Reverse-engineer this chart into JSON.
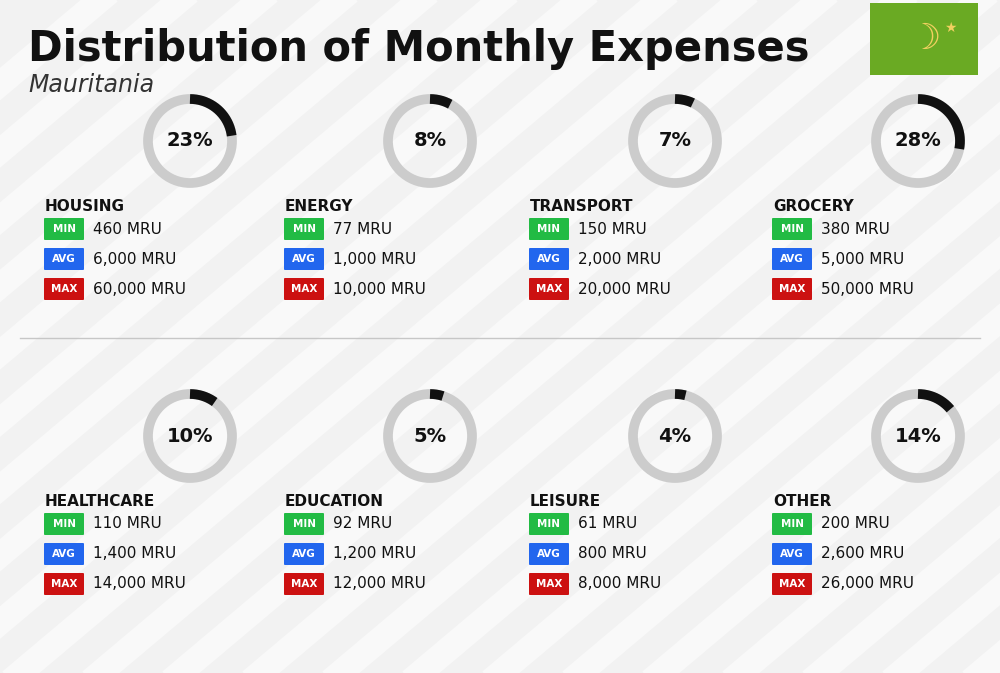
{
  "title": "Distribution of Monthly Expenses",
  "subtitle": "Mauritania",
  "bg_color": "#f2f2f2",
  "categories": [
    {
      "name": "HOUSING",
      "pct": 23,
      "min": "460 MRU",
      "avg": "6,000 MRU",
      "max": "60,000 MRU"
    },
    {
      "name": "ENERGY",
      "pct": 8,
      "min": "77 MRU",
      "avg": "1,000 MRU",
      "max": "10,000 MRU"
    },
    {
      "name": "TRANSPORT",
      "pct": 7,
      "min": "150 MRU",
      "avg": "2,000 MRU",
      "max": "20,000 MRU"
    },
    {
      "name": "GROCERY",
      "pct": 28,
      "min": "380 MRU",
      "avg": "5,000 MRU",
      "max": "50,000 MRU"
    },
    {
      "name": "HEALTHCARE",
      "pct": 10,
      "min": "110 MRU",
      "avg": "1,400 MRU",
      "max": "14,000 MRU"
    },
    {
      "name": "EDUCATION",
      "pct": 5,
      "min": "92 MRU",
      "avg": "1,200 MRU",
      "max": "12,000 MRU"
    },
    {
      "name": "LEISURE",
      "pct": 4,
      "min": "61 MRU",
      "avg": "800 MRU",
      "max": "8,000 MRU"
    },
    {
      "name": "OTHER",
      "pct": 14,
      "min": "200 MRU",
      "avg": "2,600 MRU",
      "max": "26,000 MRU"
    }
  ],
  "min_color": "#22bb44",
  "avg_color": "#2266ee",
  "max_color": "#cc1111",
  "label_color": "#ffffff",
  "title_color": "#111111",
  "subtitle_color": "#333333",
  "category_color": "#111111",
  "donut_active": "#111111",
  "donut_bg": "#cccccc",
  "flag_bg": "#6aaa23",
  "flag_symbol_color": "#f0d060",
  "stripe_color": "#ffffff",
  "stripe_alpha": 0.55,
  "stripe_linewidth": 18
}
